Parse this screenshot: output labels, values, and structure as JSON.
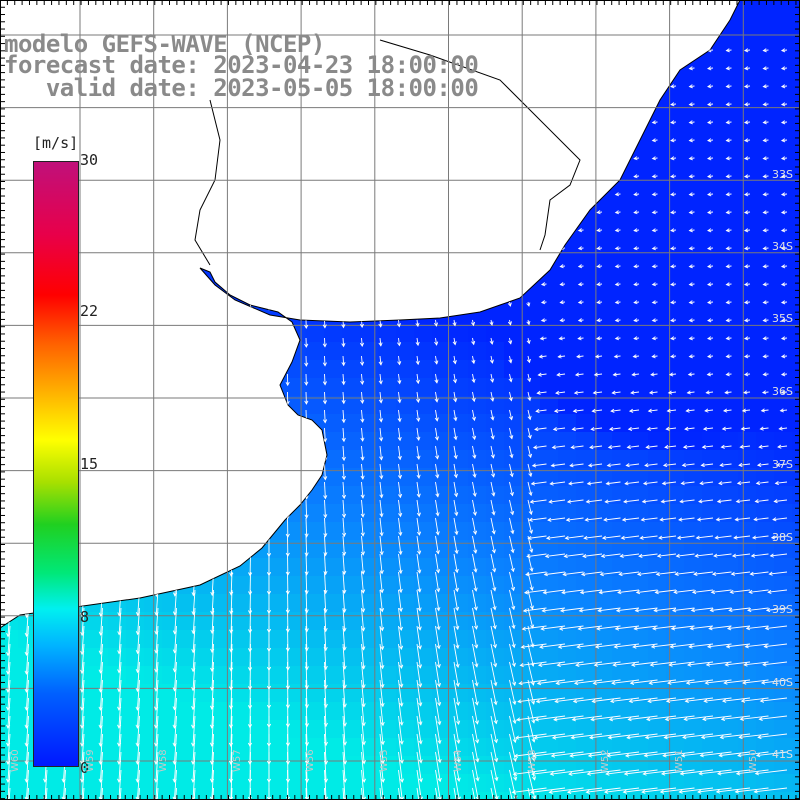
{
  "header": {
    "line1": "modelo GEFS-WAVE (NCEP)",
    "line2": "forecast date: 2023-04-23 18:00:00",
    "line3": "   valid date: 2023-05-05 18:00:00"
  },
  "colorbar": {
    "unit": "[m/s]",
    "ticks": [
      "30",
      "22",
      "15",
      "8",
      "0"
    ],
    "tick_values": [
      30,
      22,
      15,
      8,
      0
    ],
    "min": 0,
    "max": 30
  },
  "map": {
    "lat_labels": [
      "33S",
      "34S",
      "35S",
      "36S",
      "37S",
      "38S",
      "39S",
      "40S",
      "41S"
    ],
    "lon_labels": [
      "W60",
      "W59",
      "W58",
      "W57",
      "W56",
      "W55",
      "W54",
      "W53",
      "W52",
      "W51",
      "W50"
    ],
    "colors": {
      "land": "#ffffff",
      "calm": "#0024e8",
      "moderate": "#0a6cff",
      "strong": "#22c8ff",
      "coast": "#000000",
      "grid": "#7a7a7a",
      "vector": "#ffffff"
    }
  }
}
